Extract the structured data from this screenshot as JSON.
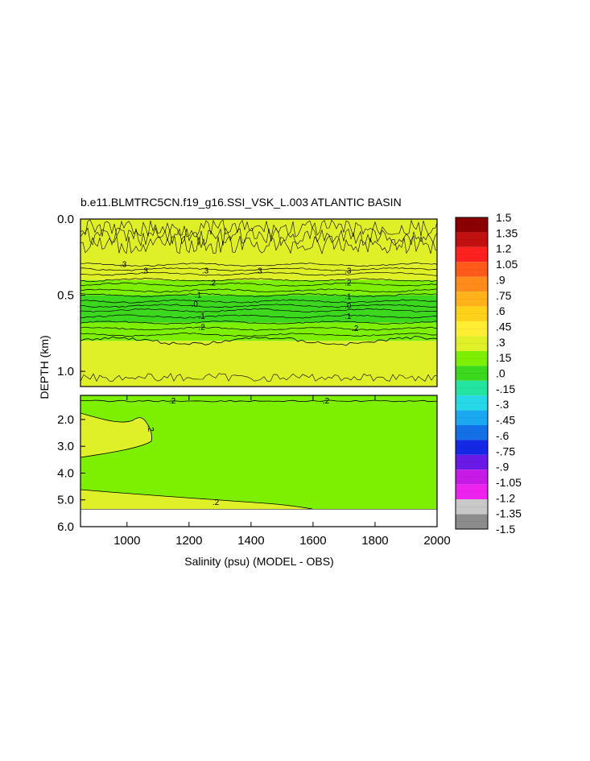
{
  "chart_data": {
    "type": "heatmap",
    "title": "b.e11.BLMTRC5CN.f19_g16.SSI_VSK_L.003 ATLANTIC BASIN",
    "xlabel": "Salinity (psu) (MODEL - OBS)",
    "ylabel": "DEPTH (km)",
    "xlim": [
      850,
      2000
    ],
    "x_ticks": [
      "1000",
      "1200",
      "1400",
      "1600",
      "1800",
      "2000"
    ],
    "upper_panel": {
      "ylim": [
        0.0,
        1.1
      ],
      "y_ticks": [
        "0.0",
        "0.5",
        "1.0"
      ],
      "bands": [
        {
          "depth_top": 0.0,
          "depth_bottom": 0.3,
          "value": 0.35
        },
        {
          "depth_top": 0.3,
          "depth_bottom": 0.4,
          "value": 0.25
        },
        {
          "depth_top": 0.4,
          "depth_bottom": 0.5,
          "value": 0.15
        },
        {
          "depth_top": 0.5,
          "depth_bottom": 0.6,
          "value": 0.05
        },
        {
          "depth_top": 0.6,
          "depth_bottom": 0.68,
          "value": 0.0
        },
        {
          "depth_top": 0.68,
          "depth_bottom": 0.8,
          "value": 0.15
        },
        {
          "depth_top": 0.8,
          "depth_bottom": 1.1,
          "value": 0.35
        }
      ],
      "contour_labels": [
        ".3",
        ".3",
        ".3",
        ".3",
        ".3",
        ".2",
        ".2",
        ".1",
        ".1",
        ".0",
        ".0",
        ".1",
        ".1",
        ".2",
        ".2"
      ]
    },
    "lower_panel": {
      "ylim": [
        1.1,
        6.0
      ],
      "y_ticks": [
        "2.0",
        "3.0",
        "4.0",
        "5.0",
        "6.0"
      ],
      "background_value": 0.2,
      "data_bottom_depth": 5.35,
      "contour_labels": [
        ".2",
        ".2",
        ".2",
        ".2"
      ]
    },
    "colorbar": {
      "min": -1.5,
      "max": 1.5,
      "labels": [
        "1.5",
        "1.35",
        "1.2",
        "1.05",
        ".9",
        ".75",
        ".6",
        ".45",
        ".3",
        ".15",
        ".0",
        "-.15",
        "-.3",
        "-.45",
        "-.6",
        "-.75",
        "-.9",
        "-1.05",
        "-1.2",
        "-1.35",
        "-1.5"
      ],
      "colors": [
        "#8b0000",
        "#c01010",
        "#ff2020",
        "#ff5a1a",
        "#ff8c1a",
        "#ffb21a",
        "#ffd21a",
        "#ffee33",
        "#e0f028",
        "#7cf000",
        "#3cd81e",
        "#23e4a0",
        "#27d8e6",
        "#1aa8f0",
        "#1470e6",
        "#1428e6",
        "#6a1ae6",
        "#c81ae6",
        "#ee22ee",
        "#c8c8c8",
        "#8c8c8c"
      ]
    }
  }
}
